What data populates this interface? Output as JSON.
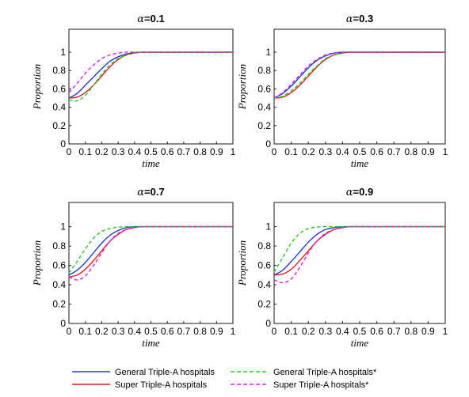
{
  "chart_data": {
    "type": "line",
    "panels": [
      {
        "title_symbol": "α",
        "title_value": "=0.1",
        "xlabel": "time",
        "ylabel": "Proportion",
        "xlim": [
          0,
          1
        ],
        "ylim": [
          0,
          1.25
        ],
        "xticks": [
          "0",
          "0.1",
          "0.2",
          "0.3",
          "0.4",
          "0.5",
          "0.6",
          "0.7",
          "0.8",
          "0.9",
          "1"
        ],
        "yticks": [
          "0",
          "0.2",
          "0.4",
          "0.6",
          "0.8",
          "1"
        ],
        "series": [
          {
            "name": "General Triple-A hospitals",
            "color": "#1f3fd6",
            "dash": "solid",
            "x": [
              0,
              0.05,
              0.1,
              0.15,
              0.2,
              0.25,
              0.3,
              0.35,
              0.4,
              0.45,
              0.5,
              0.6,
              0.7,
              0.8,
              0.9,
              1
            ],
            "y": [
              0.5,
              0.55,
              0.64,
              0.73,
              0.82,
              0.9,
              0.95,
              0.98,
              0.995,
              1,
              1,
              1,
              1,
              1,
              1,
              1
            ]
          },
          {
            "name": "Super Triple-A hospitals",
            "color": "#e02020",
            "dash": "solid",
            "x": [
              0,
              0.05,
              0.1,
              0.15,
              0.2,
              0.25,
              0.3,
              0.35,
              0.4,
              0.45,
              0.5,
              0.6,
              0.7,
              0.8,
              0.9,
              1
            ],
            "y": [
              0.5,
              0.51,
              0.56,
              0.64,
              0.74,
              0.84,
              0.92,
              0.97,
              0.99,
              1,
              1,
              1,
              1,
              1,
              1,
              1
            ]
          },
          {
            "name": "General Triple-A hospitals*",
            "color": "#22cc22",
            "dash": "dashed",
            "x": [
              0,
              0.05,
              0.1,
              0.15,
              0.2,
              0.25,
              0.3,
              0.35,
              0.4,
              0.45,
              0.5,
              0.6,
              0.7,
              0.8,
              0.9,
              1
            ],
            "y": [
              0.48,
              0.47,
              0.53,
              0.64,
              0.76,
              0.86,
              0.93,
              0.97,
              0.99,
              1,
              1,
              1,
              1,
              1,
              1,
              1
            ]
          },
          {
            "name": "Super Triple-A hospitals*",
            "color": "#e020e0",
            "dash": "dashed",
            "x": [
              0,
              0.05,
              0.1,
              0.15,
              0.2,
              0.25,
              0.3,
              0.35,
              0.4,
              0.45,
              0.5,
              0.6,
              0.7,
              0.8,
              0.9,
              1
            ],
            "y": [
              0.56,
              0.66,
              0.77,
              0.86,
              0.93,
              0.97,
              0.99,
              1,
              1,
              1,
              1,
              1,
              1,
              1,
              1,
              1
            ]
          }
        ]
      },
      {
        "title_symbol": "α",
        "title_value": "=0.3",
        "xlabel": "time",
        "ylabel": "Proportion",
        "xlim": [
          0,
          1
        ],
        "ylim": [
          0,
          1.25
        ],
        "xticks": [
          "0",
          "0.1",
          "0.2",
          "0.3",
          "0.4",
          "0.5",
          "0.6",
          "0.7",
          "0.8",
          "0.9",
          "1"
        ],
        "yticks": [
          "0",
          "0.2",
          "0.4",
          "0.6",
          "0.8",
          "1"
        ],
        "series": [
          {
            "name": "General Triple-A hospitals",
            "color": "#1f3fd6",
            "dash": "solid",
            "x": [
              0,
              0.05,
              0.1,
              0.15,
              0.2,
              0.25,
              0.3,
              0.35,
              0.4,
              0.45,
              0.5,
              0.6,
              0.7,
              0.8,
              0.9,
              1
            ],
            "y": [
              0.5,
              0.55,
              0.63,
              0.73,
              0.83,
              0.91,
              0.96,
              0.99,
              1,
              1,
              1,
              1,
              1,
              1,
              1,
              1
            ]
          },
          {
            "name": "Super Triple-A hospitals",
            "color": "#e02020",
            "dash": "solid",
            "x": [
              0,
              0.05,
              0.1,
              0.15,
              0.2,
              0.25,
              0.3,
              0.35,
              0.4,
              0.45,
              0.5,
              0.6,
              0.7,
              0.8,
              0.9,
              1
            ],
            "y": [
              0.5,
              0.51,
              0.56,
              0.64,
              0.74,
              0.84,
              0.92,
              0.97,
              0.99,
              1,
              1,
              1,
              1,
              1,
              1,
              1
            ]
          },
          {
            "name": "General Triple-A hospitals*",
            "color": "#22cc22",
            "dash": "dashed",
            "x": [
              0,
              0.05,
              0.1,
              0.15,
              0.2,
              0.25,
              0.3,
              0.35,
              0.4,
              0.45,
              0.5,
              0.6,
              0.7,
              0.8,
              0.9,
              1
            ],
            "y": [
              0.5,
              0.52,
              0.58,
              0.66,
              0.76,
              0.85,
              0.93,
              0.97,
              0.99,
              1,
              1,
              1,
              1,
              1,
              1,
              1
            ]
          },
          {
            "name": "Super Triple-A hospitals*",
            "color": "#e020e0",
            "dash": "dashed",
            "x": [
              0,
              0.05,
              0.1,
              0.15,
              0.2,
              0.25,
              0.3,
              0.35,
              0.4,
              0.45,
              0.5,
              0.6,
              0.7,
              0.8,
              0.9,
              1
            ],
            "y": [
              0.5,
              0.56,
              0.65,
              0.75,
              0.85,
              0.92,
              0.97,
              0.99,
              1,
              1,
              1,
              1,
              1,
              1,
              1,
              1
            ]
          }
        ]
      },
      {
        "title_symbol": "α",
        "title_value": "=0.7",
        "xlabel": "time",
        "ylabel": "Proportion",
        "xlim": [
          0,
          1
        ],
        "ylim": [
          0,
          1.25
        ],
        "xticks": [
          "0",
          "0.1",
          "0.2",
          "0.3",
          "0.4",
          "0.5",
          "0.6",
          "0.7",
          "0.8",
          "0.9",
          "1"
        ],
        "yticks": [
          "0",
          "0.2",
          "0.4",
          "0.6",
          "0.8",
          "1"
        ],
        "series": [
          {
            "name": "General Triple-A hospitals",
            "color": "#1f3fd6",
            "dash": "solid",
            "x": [
              0,
              0.05,
              0.1,
              0.15,
              0.2,
              0.25,
              0.3,
              0.35,
              0.4,
              0.45,
              0.5,
              0.6,
              0.7,
              0.8,
              0.9,
              1
            ],
            "y": [
              0.5,
              0.55,
              0.63,
              0.73,
              0.83,
              0.91,
              0.96,
              0.99,
              1,
              1,
              1,
              1,
              1,
              1,
              1,
              1
            ]
          },
          {
            "name": "Super Triple-A hospitals",
            "color": "#e02020",
            "dash": "solid",
            "x": [
              0,
              0.05,
              0.1,
              0.15,
              0.2,
              0.25,
              0.3,
              0.35,
              0.4,
              0.45,
              0.5,
              0.6,
              0.7,
              0.8,
              0.9,
              1
            ],
            "y": [
              0.48,
              0.5,
              0.56,
              0.65,
              0.75,
              0.85,
              0.92,
              0.97,
              0.99,
              1,
              1,
              1,
              1,
              1,
              1,
              1
            ]
          },
          {
            "name": "General Triple-A hospitals*",
            "color": "#22cc22",
            "dash": "dashed",
            "x": [
              0,
              0.05,
              0.1,
              0.15,
              0.2,
              0.25,
              0.3,
              0.35,
              0.4,
              0.45,
              0.5,
              0.6,
              0.7,
              0.8,
              0.9,
              1
            ],
            "y": [
              0.52,
              0.64,
              0.77,
              0.88,
              0.95,
              0.98,
              0.995,
              1,
              1,
              1,
              1,
              1,
              1,
              1,
              1,
              1
            ]
          },
          {
            "name": "Super Triple-A hospitals*",
            "color": "#e020e0",
            "dash": "dashed",
            "x": [
              0,
              0.05,
              0.1,
              0.15,
              0.2,
              0.25,
              0.3,
              0.35,
              0.4,
              0.45,
              0.5,
              0.6,
              0.7,
              0.8,
              0.9,
              1
            ],
            "y": [
              0.48,
              0.45,
              0.49,
              0.6,
              0.73,
              0.85,
              0.93,
              0.97,
              0.99,
              1,
              1,
              1,
              1,
              1,
              1,
              1
            ]
          }
        ]
      },
      {
        "title_symbol": "α",
        "title_value": "=0.9",
        "xlabel": "time",
        "ylabel": "Proportion",
        "xlim": [
          0,
          1
        ],
        "ylim": [
          0,
          1.25
        ],
        "xticks": [
          "0",
          "0.1",
          "0.2",
          "0.3",
          "0.4",
          "0.5",
          "0.6",
          "0.7",
          "0.8",
          "0.9",
          "1"
        ],
        "yticks": [
          "0",
          "0.2",
          "0.4",
          "0.6",
          "0.8",
          "1"
        ],
        "series": [
          {
            "name": "General Triple-A hospitals",
            "color": "#1f3fd6",
            "dash": "solid",
            "x": [
              0,
              0.05,
              0.1,
              0.15,
              0.2,
              0.25,
              0.3,
              0.35,
              0.4,
              0.45,
              0.5,
              0.6,
              0.7,
              0.8,
              0.9,
              1
            ],
            "y": [
              0.5,
              0.55,
              0.64,
              0.74,
              0.84,
              0.92,
              0.97,
              0.99,
              1,
              1,
              1,
              1,
              1,
              1,
              1,
              1
            ]
          },
          {
            "name": "Super Triple-A hospitals",
            "color": "#e02020",
            "dash": "solid",
            "x": [
              0,
              0.05,
              0.1,
              0.15,
              0.2,
              0.25,
              0.3,
              0.35,
              0.4,
              0.45,
              0.5,
              0.6,
              0.7,
              0.8,
              0.9,
              1
            ],
            "y": [
              0.5,
              0.51,
              0.56,
              0.65,
              0.75,
              0.85,
              0.92,
              0.97,
              0.99,
              1,
              1,
              1,
              1,
              1,
              1,
              1
            ]
          },
          {
            "name": "General Triple-A hospitals*",
            "color": "#22cc22",
            "dash": "dashed",
            "x": [
              0,
              0.05,
              0.1,
              0.15,
              0.2,
              0.25,
              0.3,
              0.35,
              0.4,
              0.45,
              0.5,
              0.6,
              0.7,
              0.8,
              0.9,
              1
            ],
            "y": [
              0.53,
              0.68,
              0.83,
              0.93,
              0.98,
              0.995,
              1,
              1,
              1,
              1,
              1,
              1,
              1,
              1,
              1,
              1
            ]
          },
          {
            "name": "Super Triple-A hospitals*",
            "color": "#e020e0",
            "dash": "dashed",
            "x": [
              0,
              0.05,
              0.1,
              0.15,
              0.2,
              0.25,
              0.3,
              0.35,
              0.4,
              0.45,
              0.5,
              0.6,
              0.7,
              0.8,
              0.9,
              1
            ],
            "y": [
              0.45,
              0.42,
              0.46,
              0.58,
              0.73,
              0.85,
              0.93,
              0.97,
              0.99,
              1,
              1,
              1,
              1,
              1,
              1,
              1
            ]
          }
        ]
      }
    ],
    "legend": {
      "placement": "bottom",
      "entries": [
        {
          "label": "General Triple-A hospitals",
          "color": "#1f3fd6",
          "dash": "solid"
        },
        {
          "label": "General Triple-A hospitals*",
          "color": "#22cc22",
          "dash": "dashed"
        },
        {
          "label": "Super Triple-A hospitals",
          "color": "#e02020",
          "dash": "solid"
        },
        {
          "label": "Super Triple-A hospitals*",
          "color": "#e020e0",
          "dash": "dashed"
        }
      ]
    }
  }
}
